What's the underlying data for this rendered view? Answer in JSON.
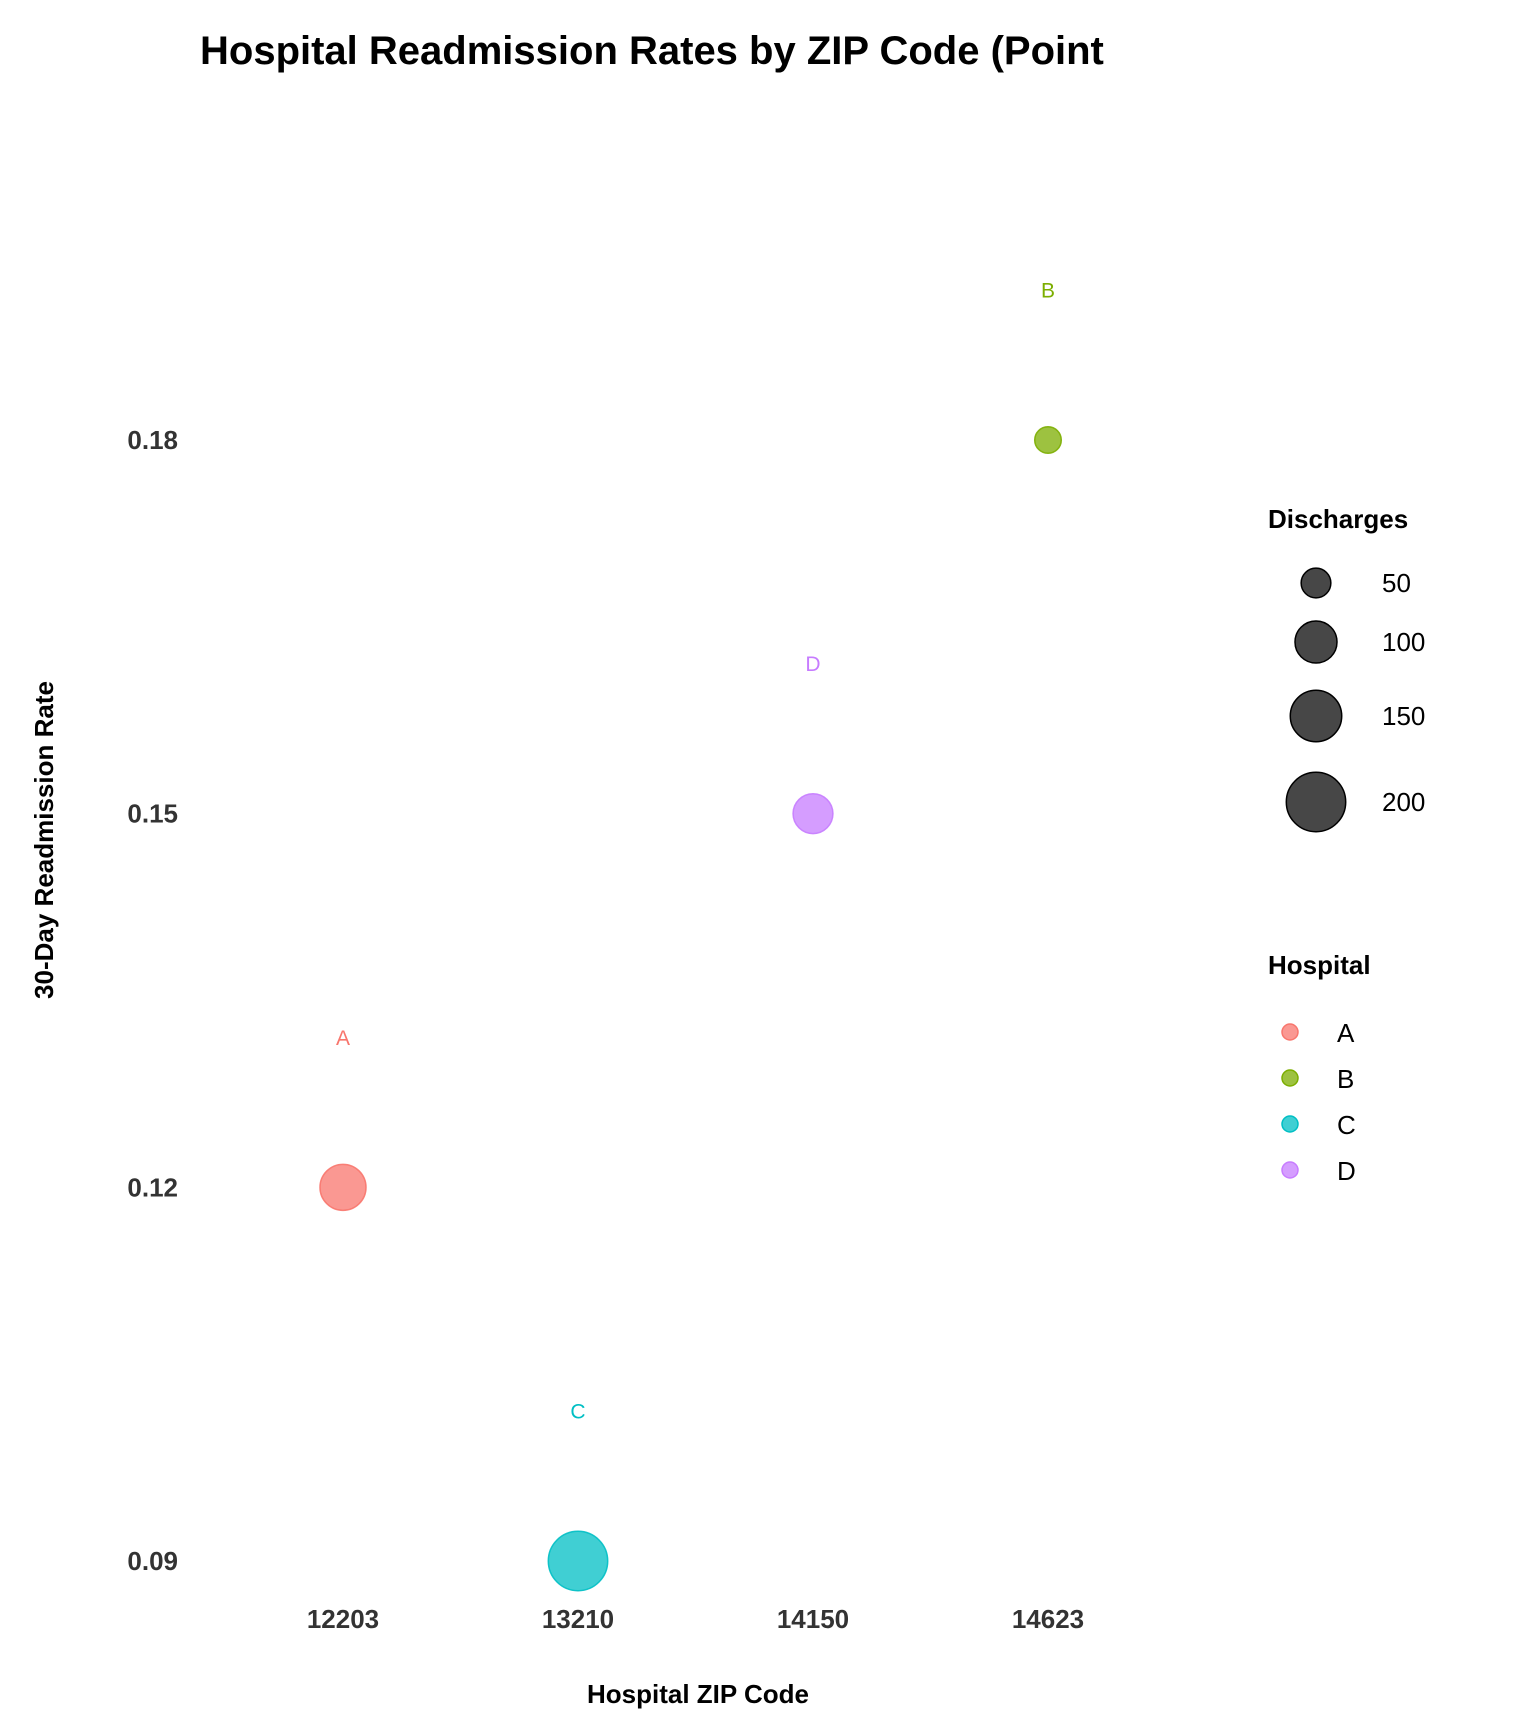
{
  "chart_data": {
    "type": "scatter",
    "title": "Hospital Readmission Rates by ZIP Code (Point",
    "xlabel": "Hospital ZIP Code",
    "ylabel": "30-Day Readmission Rate",
    "categories": [
      "12203",
      "13210",
      "14150",
      "14623"
    ],
    "y_ticks": [
      "0.09",
      "0.12",
      "0.15",
      "0.18"
    ],
    "y_tick_values": [
      0.09,
      0.12,
      0.15,
      0.18
    ],
    "ylim": [
      0.086,
      0.2
    ],
    "grid": false,
    "points": [
      {
        "hospital": "A",
        "zip": "12203",
        "rate": 0.12,
        "discharges": 120,
        "color": "#F8766D"
      },
      {
        "hospital": "C",
        "zip": "13210",
        "rate": 0.09,
        "discharges": 200,
        "color": "#00BFC4"
      },
      {
        "hospital": "D",
        "zip": "14150",
        "rate": 0.15,
        "discharges": 90,
        "color": "#C77CFF"
      },
      {
        "hospital": "B",
        "zip": "14623",
        "rate": 0.18,
        "discharges": 40,
        "color": "#7CAE00"
      }
    ],
    "label_offset": 0.012,
    "legends": {
      "size": {
        "title": "Discharges",
        "items": [
          {
            "label": "50",
            "value": 50
          },
          {
            "label": "100",
            "value": 100
          },
          {
            "label": "150",
            "value": 150
          },
          {
            "label": "200",
            "value": 200
          }
        ]
      },
      "color": {
        "title": "Hospital",
        "items": [
          {
            "label": "A",
            "color": "#F8766D"
          },
          {
            "label": "B",
            "color": "#7CAE00"
          },
          {
            "label": "C",
            "color": "#00BFC4"
          },
          {
            "label": "D",
            "color": "#C77CFF"
          }
        ]
      },
      "placement": "right"
    }
  }
}
